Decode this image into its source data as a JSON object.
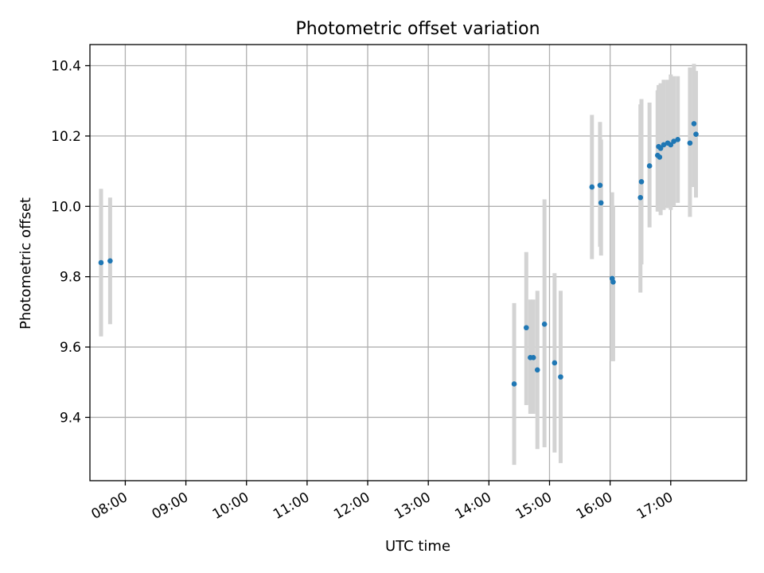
{
  "chart_data": {
    "type": "scatter",
    "title": "Photometric offset variation",
    "xlabel": "UTC time",
    "ylabel": "Photometric offset",
    "xlim": [
      "07:25",
      "18:15"
    ],
    "ylim": [
      9.22,
      10.46
    ],
    "x_ticks": [
      "08:00",
      "09:00",
      "10:00",
      "11:00",
      "12:00",
      "13:00",
      "14:00",
      "15:00",
      "16:00",
      "17:00"
    ],
    "y_ticks": [
      "9.4",
      "9.6",
      "9.8",
      "10.0",
      "10.2",
      "10.4"
    ],
    "grid": true,
    "colors": {
      "points": "#1f77b4",
      "errorbars": "#d3d3d3"
    },
    "series": [
      {
        "points": [
          {
            "x": "07:36",
            "y": 9.84,
            "err_low": 9.63,
            "err_high": 10.05
          },
          {
            "x": "07:45",
            "y": 9.845,
            "err_low": 9.665,
            "err_high": 10.025
          },
          {
            "x": "14:25",
            "y": 9.495,
            "err_low": 9.265,
            "err_high": 9.725
          },
          {
            "x": "14:37",
            "y": 9.655,
            "err_low": 9.435,
            "err_high": 9.87
          },
          {
            "x": "14:41",
            "y": 9.57,
            "err_low": 9.41,
            "err_high": 9.735
          },
          {
            "x": "14:44",
            "y": 9.57,
            "err_low": 9.41,
            "err_high": 9.735
          },
          {
            "x": "14:48",
            "y": 9.535,
            "err_low": 9.31,
            "err_high": 9.76
          },
          {
            "x": "14:55",
            "y": 9.665,
            "err_low": 9.315,
            "err_high": 10.02
          },
          {
            "x": "15:05",
            "y": 9.555,
            "err_low": 9.3,
            "err_high": 9.81
          },
          {
            "x": "15:11",
            "y": 9.515,
            "err_low": 9.27,
            "err_high": 9.76
          },
          {
            "x": "15:42",
            "y": 10.055,
            "err_low": 9.85,
            "err_high": 10.26
          },
          {
            "x": "15:50",
            "y": 10.06,
            "err_low": 9.885,
            "err_high": 10.24
          },
          {
            "x": "15:51",
            "y": 10.01,
            "err_low": 9.86,
            "err_high": 10.19
          },
          {
            "x": "16:02",
            "y": 9.795,
            "err_low": 9.56,
            "err_high": 10.04
          },
          {
            "x": "16:03",
            "y": 9.785,
            "err_low": 9.56,
            "err_high": 10.0
          },
          {
            "x": "16:30",
            "y": 10.025,
            "err_low": 9.755,
            "err_high": 10.29
          },
          {
            "x": "16:31",
            "y": 10.07,
            "err_low": 9.835,
            "err_high": 10.305
          },
          {
            "x": "16:39",
            "y": 10.115,
            "err_low": 9.94,
            "err_high": 10.295
          },
          {
            "x": "16:47",
            "y": 10.145,
            "err_low": 9.985,
            "err_high": 10.33
          },
          {
            "x": "16:48",
            "y": 10.17,
            "err_low": 9.99,
            "err_high": 10.345
          },
          {
            "x": "16:49",
            "y": 10.14,
            "err_low": 9.985,
            "err_high": 10.345
          },
          {
            "x": "16:50",
            "y": 10.165,
            "err_low": 9.975,
            "err_high": 10.35
          },
          {
            "x": "16:53",
            "y": 10.175,
            "err_low": 9.99,
            "err_high": 10.36
          },
          {
            "x": "16:57",
            "y": 10.18,
            "err_low": 9.995,
            "err_high": 10.36
          },
          {
            "x": "17:00",
            "y": 10.175,
            "err_low": 9.99,
            "err_high": 10.375
          },
          {
            "x": "17:03",
            "y": 10.185,
            "err_low": 10.0,
            "err_high": 10.37
          },
          {
            "x": "17:07",
            "y": 10.19,
            "err_low": 10.01,
            "err_high": 10.37
          },
          {
            "x": "17:19",
            "y": 10.18,
            "err_low": 9.97,
            "err_high": 10.395
          },
          {
            "x": "17:23",
            "y": 10.235,
            "err_low": 10.055,
            "err_high": 10.405
          },
          {
            "x": "17:25",
            "y": 10.205,
            "err_low": 10.025,
            "err_high": 10.385
          }
        ]
      }
    ]
  }
}
